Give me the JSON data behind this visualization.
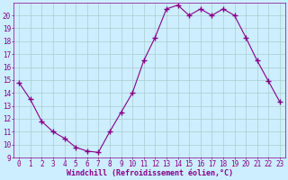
{
  "x": [
    0,
    1,
    2,
    3,
    4,
    5,
    6,
    7,
    8,
    9,
    10,
    11,
    12,
    13,
    14,
    15,
    16,
    17,
    18,
    19,
    20,
    21,
    22,
    23
  ],
  "y": [
    14.8,
    13.5,
    11.8,
    11.0,
    10.5,
    9.8,
    9.5,
    9.4,
    11.0,
    12.5,
    14.0,
    16.5,
    18.3,
    20.5,
    20.8,
    20.0,
    20.5,
    20.0,
    20.5,
    20.0,
    18.3,
    16.5,
    14.9,
    13.3
  ],
  "line_color": "#880088",
  "marker": "+",
  "marker_size": 4,
  "background_color": "#cceeff",
  "grid_color": "#aacccc",
  "xlabel": "Windchill (Refroidissement éolien,°C)",
  "ylim": [
    9,
    21
  ],
  "xlim": [
    -0.5,
    23.5
  ],
  "yticks": [
    9,
    10,
    11,
    12,
    13,
    14,
    15,
    16,
    17,
    18,
    19,
    20
  ],
  "xticks": [
    0,
    1,
    2,
    3,
    4,
    5,
    6,
    7,
    8,
    9,
    10,
    11,
    12,
    13,
    14,
    15,
    16,
    17,
    18,
    19,
    20,
    21,
    22,
    23
  ],
  "tick_color": "#880088",
  "label_color": "#880088",
  "tick_fontsize": 5.5,
  "xlabel_fontsize": 6,
  "linewidth": 0.8,
  "marker_color": "#880088"
}
